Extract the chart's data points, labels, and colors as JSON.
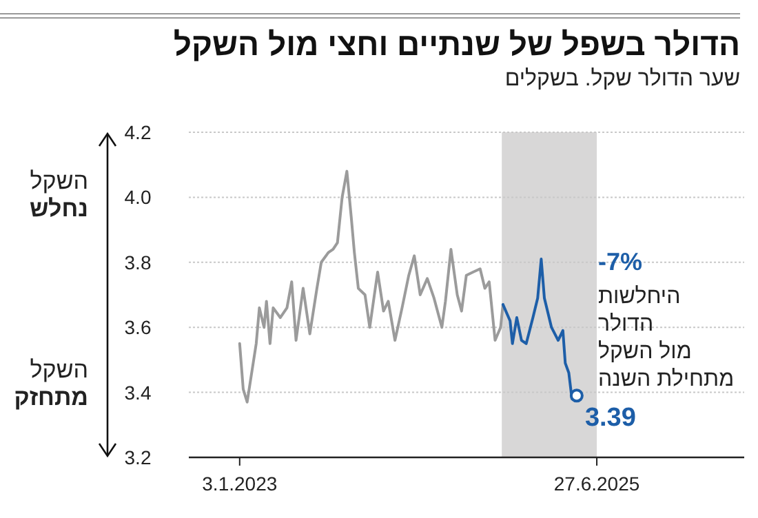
{
  "chart_data": {
    "type": "line",
    "title": "הדולר בשפל של שנתיים וחצי מול השקל",
    "subtitle": "שער הדולר שקל. בשקלים",
    "xlim": [
      "2022-08-27",
      "2026-07-06"
    ],
    "xticks": [
      {
        "value": "2023-01-03",
        "label": "3.1.2023"
      },
      {
        "value": "2025-06-27",
        "label": "27.6.2025"
      }
    ],
    "ylim": [
      3.2,
      4.2
    ],
    "yticks": [
      {
        "value": 3.2,
        "label": "3.2"
      },
      {
        "value": 3.4,
        "label": "3.4"
      },
      {
        "value": 3.6,
        "label": "3.6"
      },
      {
        "value": 3.8,
        "label": "3.8"
      },
      {
        "value": 4.0,
        "label": "4.0"
      },
      {
        "value": 4.2,
        "label": "4.2"
      }
    ],
    "grid": "y",
    "line_style": "solid",
    "bands": [
      {
        "axis": "x",
        "from": "2024-10-29",
        "to": "2025-06-27",
        "color": "#d8d7d7"
      }
    ],
    "series": [
      {
        "color": "#9b9b9b",
        "x": [
          "2023-01-03",
          "2023-01-12",
          "2023-01-22",
          "2023-02-14",
          "2023-02-22",
          "2023-03-06",
          "2023-03-12",
          "2023-03-21",
          "2023-03-29",
          "2023-04-16",
          "2023-05-03",
          "2023-05-15",
          "2023-05-26",
          "2023-06-13",
          "2023-06-30",
          "2023-07-18",
          "2023-07-29",
          "2023-08-16",
          "2023-08-28",
          "2023-09-08",
          "2023-09-20",
          "2023-10-02",
          "2023-10-13",
          "2023-10-21",
          "2023-10-31",
          "2023-11-17",
          "2023-11-29",
          "2023-12-19",
          "2024-01-03",
          "2024-01-15",
          "2024-02-01",
          "2024-02-19",
          "2024-03-07",
          "2024-03-21",
          "2024-04-05",
          "2024-04-23",
          "2024-05-10",
          "2024-05-30",
          "2024-06-08",
          "2024-06-22",
          "2024-07-08",
          "2024-07-19",
          "2024-07-31",
          "2024-08-17",
          "2024-09-04",
          "2024-09-16",
          "2024-09-27",
          "2024-10-12",
          "2024-10-26",
          "2024-11-01"
        ],
        "values": [
          3.55,
          3.41,
          3.37,
          3.55,
          3.66,
          3.6,
          3.68,
          3.55,
          3.66,
          3.63,
          3.66,
          3.74,
          3.56,
          3.72,
          3.58,
          3.72,
          3.8,
          3.83,
          3.84,
          3.86,
          4.0,
          4.08,
          3.94,
          3.83,
          3.72,
          3.7,
          3.6,
          3.77,
          3.65,
          3.68,
          3.56,
          3.66,
          3.76,
          3.82,
          3.7,
          3.75,
          3.69,
          3.6,
          3.68,
          3.84,
          3.7,
          3.65,
          3.76,
          3.77,
          3.78,
          3.72,
          3.74,
          3.56,
          3.6,
          3.67
        ]
      },
      {
        "color": "#1d5ea8",
        "x": [
          "2024-11-01",
          "2024-11-19",
          "2024-11-25",
          "2024-12-06",
          "2024-12-18",
          "2024-12-30",
          "2025-01-16",
          "2025-01-28",
          "2025-02-06",
          "2025-02-14",
          "2025-03-04",
          "2025-03-21",
          "2025-04-02",
          "2025-04-08",
          "2025-04-17",
          "2025-04-25",
          "2025-05-07"
        ],
        "values": [
          3.67,
          3.62,
          3.55,
          3.63,
          3.56,
          3.55,
          3.63,
          3.69,
          3.81,
          3.69,
          3.6,
          3.56,
          3.59,
          3.49,
          3.46,
          3.38,
          3.39
        ]
      },
      {
        "type": "scatter",
        "marker": "circle",
        "color": "#1d5ea8",
        "x": [
          "2025-05-07"
        ],
        "values": [
          3.39
        ]
      }
    ],
    "annotations": [
      "השקל\nנחלש",
      "השקל\nמתחזק",
      "-7%",
      "היחלשות\nהדולר\nמול השקל\nמתחילת השנה",
      {
        "text": "3.39",
        "x": "2025-05-07",
        "y": 3.39
      }
    ]
  }
}
